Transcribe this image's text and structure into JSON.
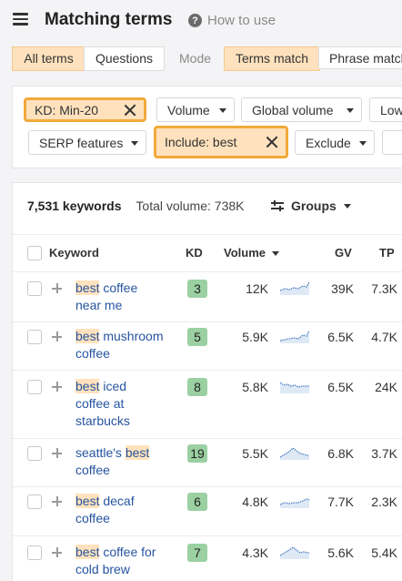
{
  "header": {
    "title": "Matching terms",
    "help_label": "How to use"
  },
  "tabs": {
    "all_terms": "All terms",
    "questions": "Questions",
    "mode_label": "Mode",
    "terms_match": "Terms match",
    "phrase_match": "Phrase match"
  },
  "filters": {
    "kd": "KD: Min-20",
    "volume": "Volume",
    "global_volume": "Global volume",
    "low": "Low",
    "serp_features": "SERP features",
    "include": "Include: best",
    "exclude": "Exclude"
  },
  "summary": {
    "keyword_count": "7,531 keywords",
    "total_volume": "Total volume: 738K",
    "groups_label": "Groups"
  },
  "columns": {
    "keyword": "Keyword",
    "kd": "KD",
    "volume": "Volume",
    "gv": "GV",
    "tp": "TP"
  },
  "colors": {
    "highlight": "#ffe2bd",
    "highlight_border": "#f2a93b",
    "kd_badge": "#9bd0a2",
    "link": "#2655a0",
    "sparkline": "#4a7fc1"
  },
  "rows": [
    {
      "hl": "best",
      "kw_line1_rest": " coffee",
      "kw_line2": "near me",
      "kw_line3": "",
      "kw_prefix": "",
      "kd": "3",
      "volume": "12K",
      "gv": "39K",
      "tp": "7.3K"
    },
    {
      "hl": "best",
      "kw_line1_rest": " mushroom",
      "kw_line2": "coffee",
      "kw_line3": "",
      "kw_prefix": "",
      "kd": "5",
      "volume": "5.9K",
      "gv": "6.5K",
      "tp": "4.7K"
    },
    {
      "hl": "best",
      "kw_line1_rest": " iced",
      "kw_line2": "coffee at",
      "kw_line3": "starbucks",
      "kw_prefix": "",
      "kd": "8",
      "volume": "5.8K",
      "gv": "6.5K",
      "tp": "24K"
    },
    {
      "hl": "best",
      "kw_line1_rest": "",
      "kw_line2": "coffee",
      "kw_line3": "",
      "kw_prefix": "seattle's ",
      "kd": "19",
      "volume": "5.5K",
      "gv": "6.8K",
      "tp": "3.7K"
    },
    {
      "hl": "best",
      "kw_line1_rest": " decaf",
      "kw_line2": "coffee",
      "kw_line3": "",
      "kw_prefix": "",
      "kd": "6",
      "volume": "4.8K",
      "gv": "7.7K",
      "tp": "2.3K"
    },
    {
      "hl": "best",
      "kw_line1_rest": " coffee for",
      "kw_line2": "cold brew",
      "kw_line3": "",
      "kw_prefix": "",
      "kd": "7",
      "volume": "4.3K",
      "gv": "5.6K",
      "tp": "5.4K"
    }
  ]
}
